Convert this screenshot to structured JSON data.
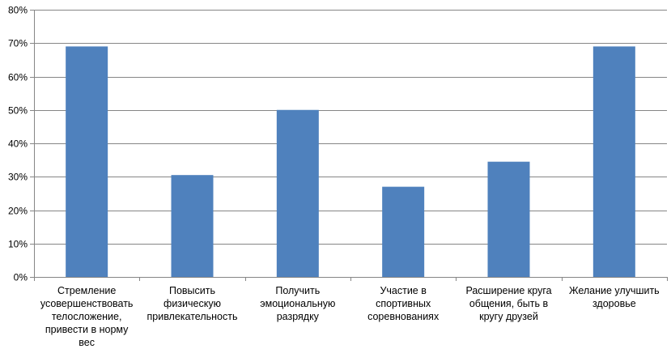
{
  "chart_data": {
    "type": "bar",
    "categories": [
      "Стремление усовершенствовать телосложение, привести в норму вес",
      "Повысить физическую привлекательность",
      "Получить эмоциональную разрядку",
      "Участие в спортивных соревнованиях",
      "Расширение круга общения, быть в кругу друзей",
      "Желание улучшить здоровье"
    ],
    "category_lines": [
      "Стремление\nусовершенствовать\nтелосложение,\nпривести в норму вес",
      "Повысить\nфизическую\nпривлекательность",
      "Получить\nэмоциональную\nразрядку",
      "Участие в\nспортивных\nсоревнованиях",
      "Расширение круга\nобщения, быть в\nкругу друзей",
      "Желание улучшить\nздоровье"
    ],
    "values": [
      69,
      30.5,
      50,
      27,
      34.5,
      69
    ],
    "ylim": [
      0,
      80
    ],
    "yticks": [
      0,
      10,
      20,
      30,
      40,
      50,
      60,
      70,
      80
    ],
    "ytick_labels": [
      "0%",
      "10%",
      "20%",
      "30%",
      "40%",
      "50%",
      "60%",
      "70%",
      "80%"
    ],
    "title": "",
    "xlabel": "",
    "ylabel": "",
    "grid": true,
    "legend": "none",
    "bar_color": "#4F81BD",
    "grid_color": "#868686"
  }
}
